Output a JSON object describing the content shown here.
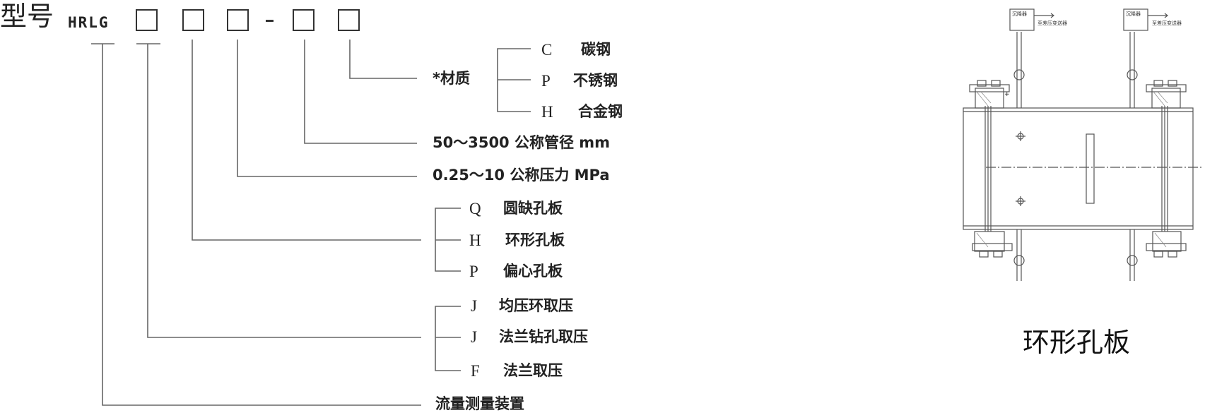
{
  "header": {
    "title": "型号",
    "model_prefix": "HRLG",
    "separator": "-"
  },
  "codes": {
    "material": {
      "label": "*材质",
      "options": [
        {
          "code": "C",
          "name": "碳钢"
        },
        {
          "code": "P",
          "name": "不锈钢"
        },
        {
          "code": "H",
          "name": "合金钢"
        }
      ]
    },
    "diameter": {
      "label": "50～3500 公称管径 mm"
    },
    "pressure": {
      "label": "0.25～10 公称压力 MPa"
    },
    "plate_type": {
      "options": [
        {
          "code": "Q",
          "name": "圆缺孔板"
        },
        {
          "code": "H",
          "name": "环形孔板"
        },
        {
          "code": "P",
          "name": "偏心孔板"
        }
      ]
    },
    "tapping": {
      "options": [
        {
          "code": "J",
          "name": "均压环取压"
        },
        {
          "code": "J",
          "name": "法兰钻孔取压"
        },
        {
          "code": "F",
          "name": "法兰取压"
        }
      ]
    },
    "device": {
      "label": "流量测量装置"
    }
  },
  "drawing": {
    "caption": "环形孔板",
    "condenser_label": "沉降器",
    "transmitter_label": "至差压变送器",
    "plus_sign": "+"
  },
  "colors": {
    "line": "#555555",
    "text": "#222222"
  }
}
